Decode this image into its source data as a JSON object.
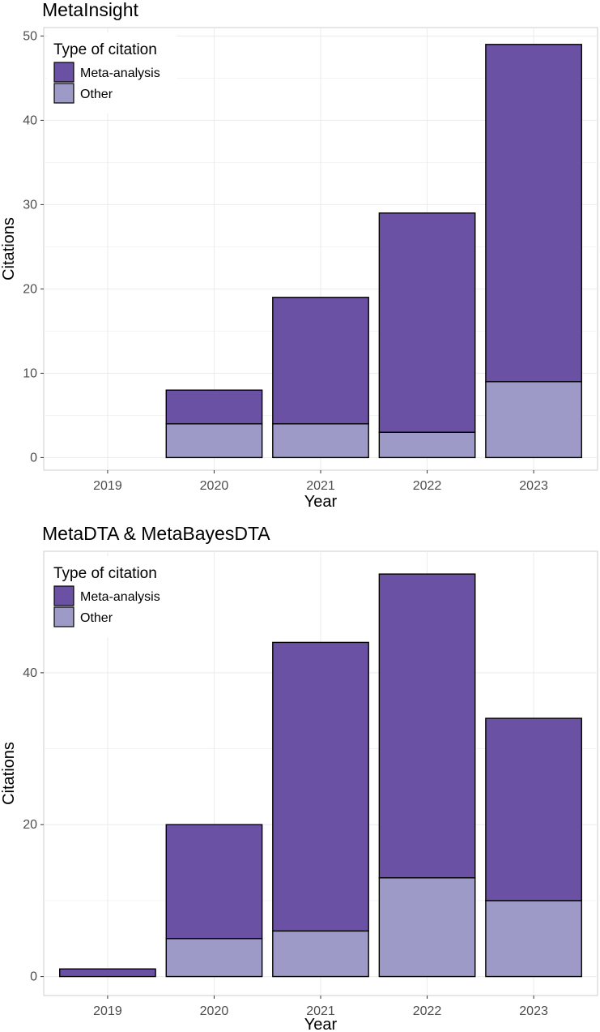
{
  "chart_data": [
    {
      "type": "bar",
      "stacked": true,
      "title": "MetaInsight",
      "xlabel": "Year",
      "ylabel": "Citations",
      "categories": [
        "2019",
        "2020",
        "2021",
        "2022",
        "2023"
      ],
      "series": [
        {
          "name": "Other",
          "values": [
            0,
            4,
            4,
            3,
            9
          ]
        },
        {
          "name": "Meta-analysis",
          "values": [
            0,
            4,
            15,
            26,
            40
          ]
        }
      ],
      "ylim": [
        -1.5,
        51
      ],
      "yticks": [
        0,
        10,
        20,
        30,
        40,
        50
      ],
      "legend": {
        "title": "Type of citation",
        "position": "top-left",
        "items": [
          {
            "label": "Meta-analysis",
            "color": "#6a51a3"
          },
          {
            "label": "Other",
            "color": "#9e9ac8"
          }
        ]
      }
    },
    {
      "type": "bar",
      "stacked": true,
      "title": "MetaDTA & MetaBayesDTA",
      "xlabel": "Year",
      "ylabel": "Citations",
      "categories": [
        "2019",
        "2020",
        "2021",
        "2022",
        "2023"
      ],
      "series": [
        {
          "name": "Other",
          "values": [
            0,
            5,
            6,
            13,
            10
          ]
        },
        {
          "name": "Meta-analysis",
          "values": [
            1,
            15,
            38,
            40,
            24
          ]
        }
      ],
      "ylim": [
        -2.5,
        56
      ],
      "yticks": [
        0,
        20,
        40
      ],
      "legend": {
        "title": "Type of citation",
        "position": "top-left",
        "items": [
          {
            "label": "Meta-analysis",
            "color": "#6a51a3"
          },
          {
            "label": "Other",
            "color": "#9e9ac8"
          }
        ]
      }
    }
  ]
}
